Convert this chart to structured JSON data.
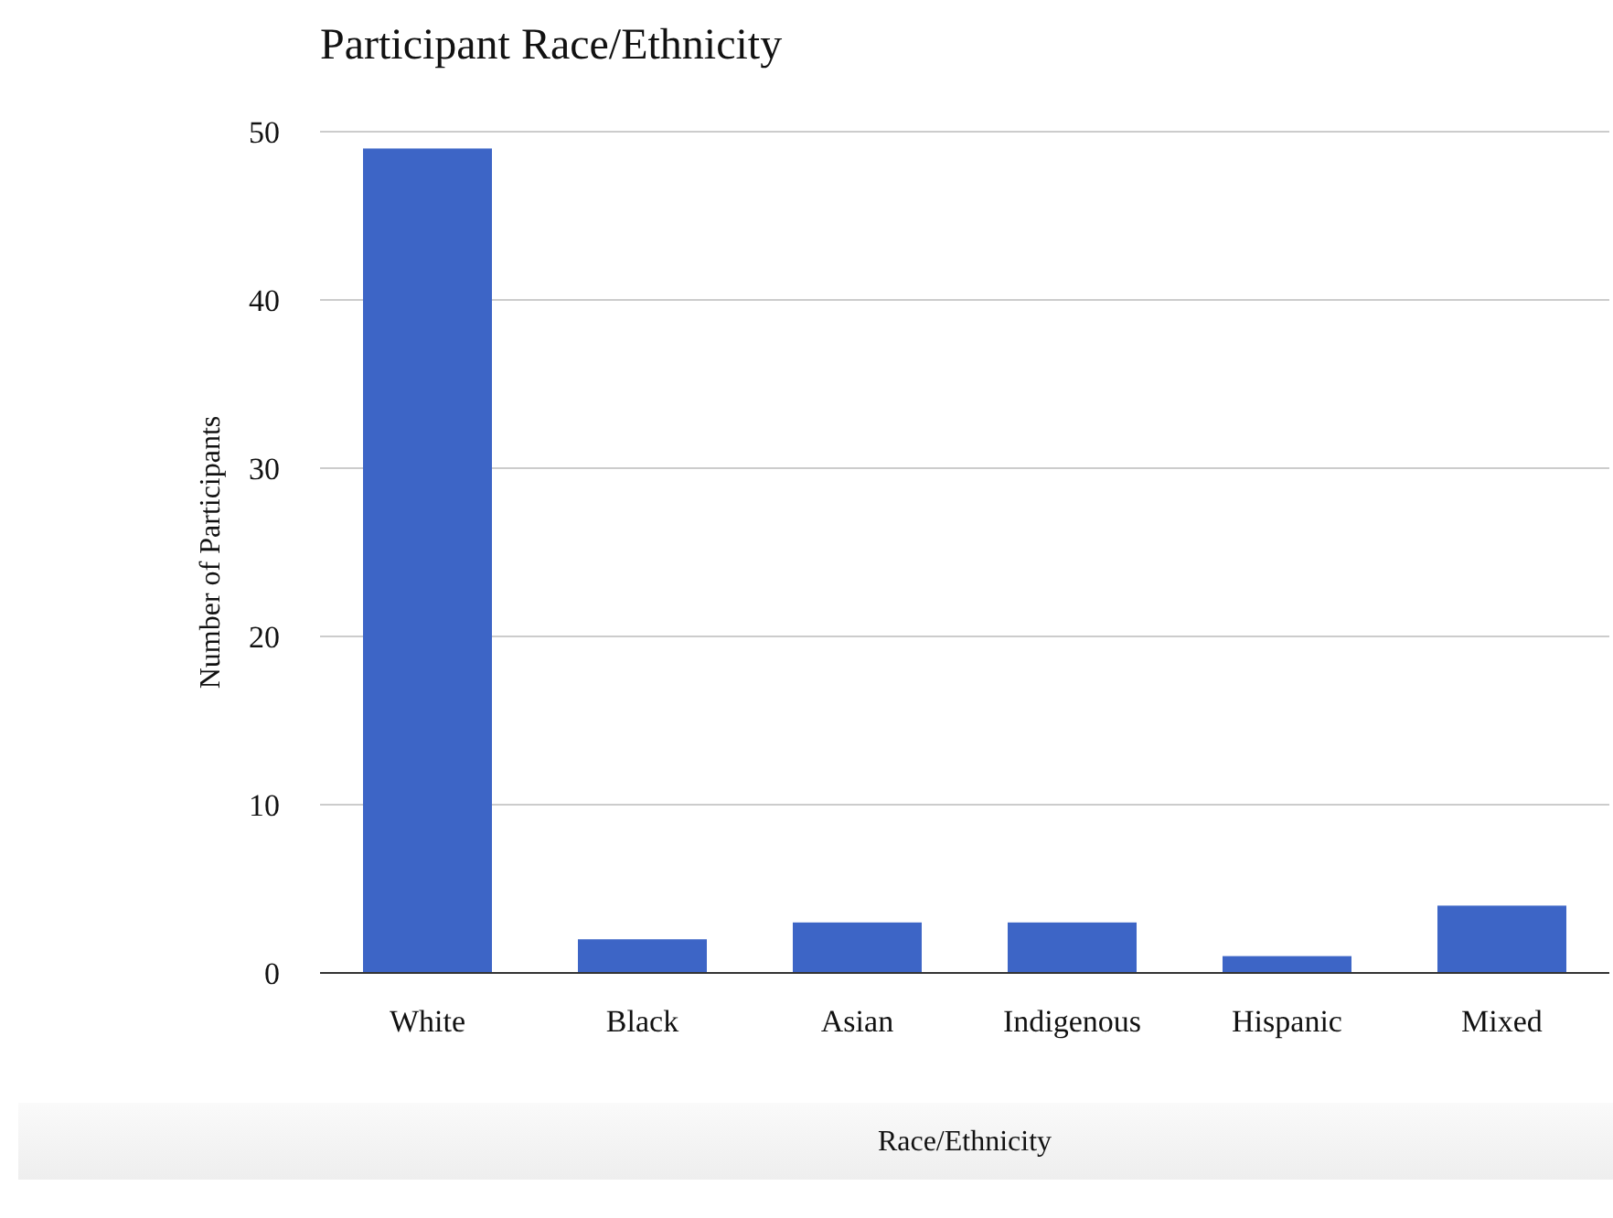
{
  "chart_data": {
    "type": "bar",
    "title": "Participant Race/Ethnicity",
    "xlabel": "Race/Ethnicity",
    "ylabel": "Number of Participants",
    "categories": [
      "White",
      "Black",
      "Asian",
      "Indigenous",
      "Hispanic",
      "Mixed"
    ],
    "values": [
      49,
      2,
      3,
      3,
      1,
      4
    ],
    "color": "#3d65c6",
    "ylim": [
      0,
      50
    ],
    "yticks": [
      0,
      10,
      20,
      30,
      40,
      50
    ],
    "grid": "y"
  }
}
